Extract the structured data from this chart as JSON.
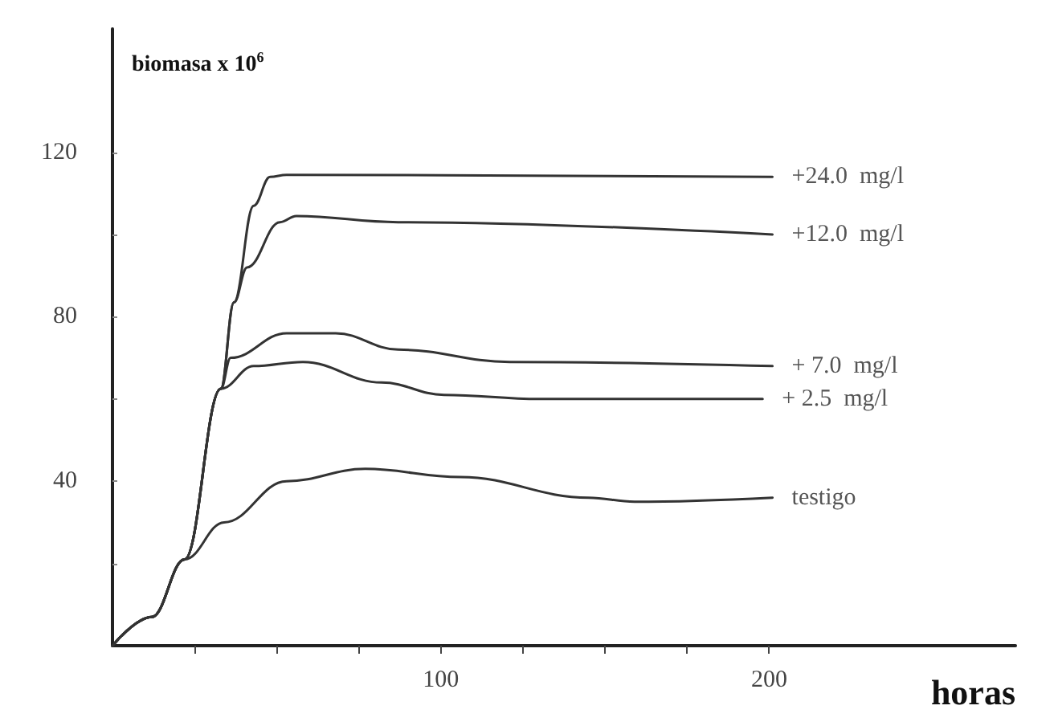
{
  "chart_data": {
    "type": "line",
    "ylabel": "biomasa x 10$^{6}$",
    "xlabel": "horas",
    "xlim": [
      0,
      275
    ],
    "ylim": [
      0,
      150
    ],
    "xticks": [
      {
        "value": 25,
        "label": null
      },
      {
        "value": 50,
        "label": null
      },
      {
        "value": 75,
        "label": null
      },
      100,
      {
        "value": 125,
        "label": null
      },
      {
        "value": 150,
        "label": null
      },
      {
        "value": 175,
        "label": null
      },
      200
    ],
    "yticks": [
      {
        "value": 20,
        "label": null
      },
      40,
      {
        "value": 60,
        "label": null
      },
      80,
      {
        "value": 100,
        "label": null
      },
      120
    ],
    "grid": false,
    "legend": false,
    "marker": "none",
    "line_style": "solid",
    "series": [
      {
        "name": "+24.0  mg/l",
        "color": "#333333",
        "x": [
          0,
          12,
          22,
          33,
          37,
          43,
          48,
          53,
          201
        ],
        "values": [
          0,
          7,
          21,
          62.5,
          83.5,
          107,
          114,
          114.5,
          114
        ]
      },
      {
        "name": "+12.0  mg/l",
        "color": "#333333",
        "x": [
          0,
          12,
          22,
          33,
          37,
          41,
          51,
          56,
          87,
          201
        ],
        "values": [
          0,
          7,
          21,
          62.5,
          83.5,
          92,
          103,
          104.5,
          103,
          100
        ]
      },
      {
        "name": "+ 7.0  mg/l",
        "color": "#333333",
        "x": [
          0,
          12,
          22,
          33,
          36,
          53,
          68,
          87,
          121,
          201
        ],
        "values": [
          0,
          7,
          21,
          62.5,
          70,
          76,
          76,
          72,
          69,
          68
        ]
      },
      {
        "name": "+ 2.5  mg/l",
        "color": "#333333",
        "x": [
          0,
          12,
          22,
          33,
          43,
          58,
          82,
          101,
          130,
          198
        ],
        "values": [
          0,
          7,
          21,
          62.5,
          68,
          69,
          64,
          61,
          60,
          60
        ]
      },
      {
        "name": "testigo",
        "color": "#333333",
        "x": [
          0,
          12,
          22,
          34,
          53,
          77,
          106,
          145,
          159,
          201
        ],
        "values": [
          0,
          7,
          21,
          30,
          40,
          43,
          41,
          36,
          35,
          36
        ]
      }
    ]
  }
}
